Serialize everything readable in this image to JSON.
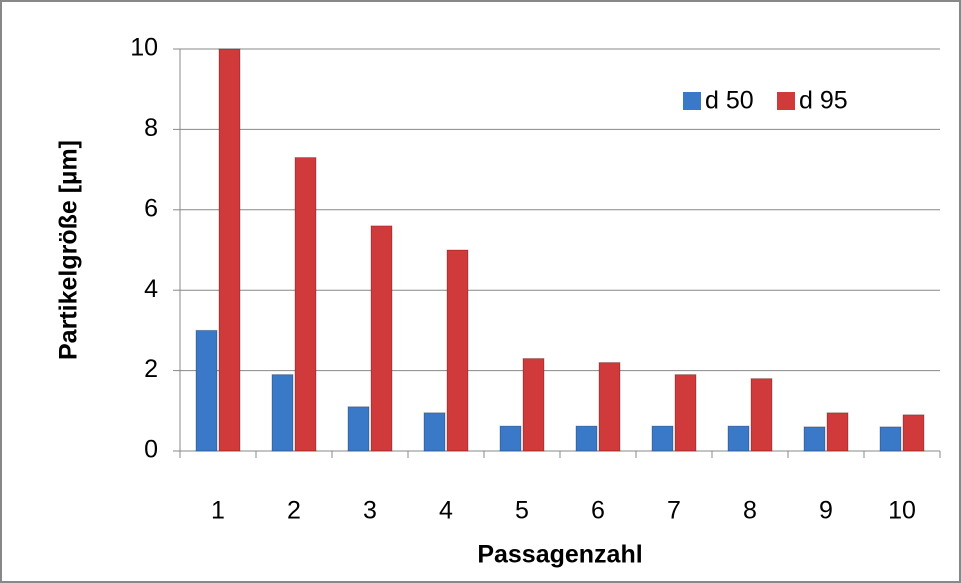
{
  "chart_data": {
    "type": "bar",
    "x_label": "Passagenzahl",
    "y_label": "Partikelgröße [µm]",
    "categories": [
      "1",
      "2",
      "3",
      "4",
      "5",
      "6",
      "7",
      "8",
      "9",
      "10"
    ],
    "series": [
      {
        "name": "d 50",
        "color": "#3a78c8",
        "values": [
          3.0,
          1.9,
          1.1,
          0.95,
          0.62,
          0.62,
          0.62,
          0.62,
          0.6,
          0.6
        ]
      },
      {
        "name": "d 95",
        "color": "#d03a3a",
        "values": [
          10.0,
          7.3,
          5.6,
          5.0,
          2.3,
          2.2,
          1.9,
          1.8,
          0.95,
          0.9
        ]
      }
    ],
    "ylim": [
      0,
      10
    ],
    "yticks": [
      0,
      2,
      4,
      6,
      8,
      10
    ],
    "grid": true,
    "legend": "top-right"
  }
}
